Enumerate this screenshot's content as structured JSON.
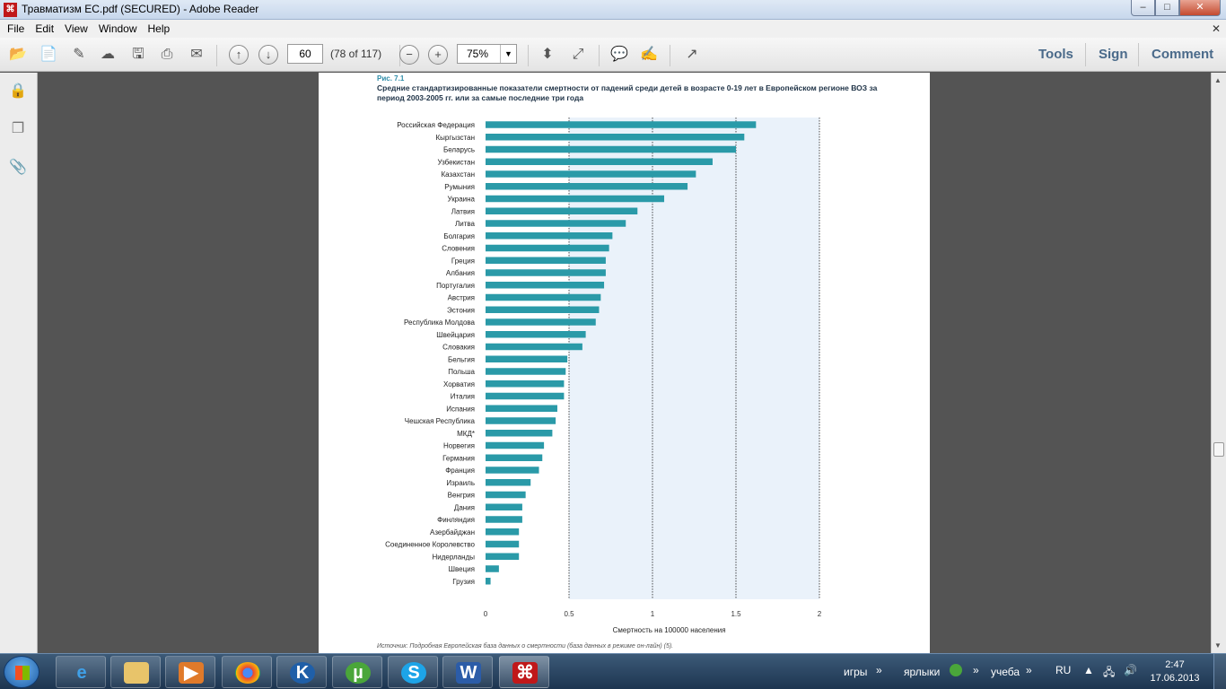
{
  "window": {
    "title": "Травматизм ЕС.pdf (SECURED) - Adobe Reader",
    "minimize": "–",
    "maximize": "□",
    "close": "✕"
  },
  "menu": [
    "File",
    "Edit",
    "View",
    "Window",
    "Help"
  ],
  "menu_close": "✕",
  "toolbar": {
    "page_number": "60",
    "page_count": "(78 of 117)",
    "zoom": "75%",
    "zoom_arrow": "▼",
    "tools_label": "Tools",
    "sign_label": "Sign",
    "comment_label": "Comment"
  },
  "document": {
    "figure_label": "Рис. 7.1",
    "figure_title": "Средние стандартизированные показатели смертности от падений среди детей в возрасте 0-19 лет в Европейском регионе ВОЗ за период 2003-2005 гг. или за самые последние три года",
    "source": "Источник: Подробная Европейская база данных о смертности (база данных в режиме он-лайн) (5)."
  },
  "chart_data": {
    "type": "bar",
    "orientation": "horizontal",
    "categories": [
      "Российская Федерация",
      "Кыргызстан",
      "Беларусь",
      "Узбекистан",
      "Казахстан",
      "Румыния",
      "Украина",
      "Латвия",
      "Литва",
      "Болгария",
      "Словения",
      "Греция",
      "Албания",
      "Португалия",
      "Австрия",
      "Эстония",
      "Республика Молдова",
      "Швейцария",
      "Словакия",
      "Бельгия",
      "Польша",
      "Хорватия",
      "Италия",
      "Испания",
      "Чешская Республика",
      "МКД*",
      "Норвегия",
      "Германия",
      "Франция",
      "Израиль",
      "Венгрия",
      "Дания",
      "Финляндия",
      "Азербайджан",
      "Соединенное Королевство",
      "Нидерланды",
      "Швеция",
      "Грузия"
    ],
    "values": [
      1.62,
      1.55,
      1.5,
      1.36,
      1.26,
      1.21,
      1.07,
      0.91,
      0.84,
      0.76,
      0.74,
      0.72,
      0.72,
      0.71,
      0.69,
      0.68,
      0.66,
      0.6,
      0.58,
      0.49,
      0.48,
      0.47,
      0.47,
      0.43,
      0.42,
      0.4,
      0.35,
      0.34,
      0.32,
      0.27,
      0.24,
      0.22,
      0.22,
      0.2,
      0.2,
      0.2,
      0.08,
      0.03
    ],
    "xlim": [
      0,
      2
    ],
    "xticks": [
      "0",
      "0.5",
      "1",
      "1.5",
      "2"
    ],
    "xlabel": "Смертность на 100000 населения",
    "color": "#2a9aa8",
    "shaded_region_from": 0.5,
    "grid": "dotted vertical"
  },
  "taskbar": {
    "tray_labels": [
      "игры",
      "ярлыки",
      "учеба"
    ],
    "language": "RU",
    "time": "2:47",
    "date": "17.06.2013"
  }
}
